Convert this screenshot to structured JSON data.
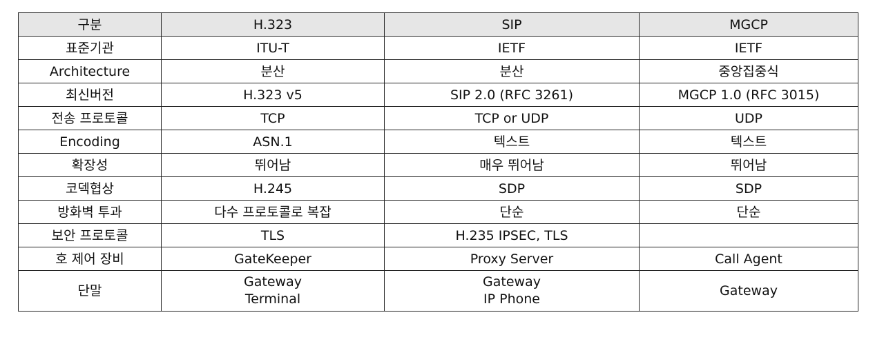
{
  "headers": [
    "구분",
    "H.323",
    "SIP",
    "MGCP"
  ],
  "rows": [
    {
      "label": "표준기관",
      "h323": [
        "ITU-T"
      ],
      "sip": [
        "IETF"
      ],
      "mgcp": [
        "IETF"
      ]
    },
    {
      "label": "Architecture",
      "h323": [
        "분산"
      ],
      "sip": [
        "분산"
      ],
      "mgcp": [
        "중앙집중식"
      ]
    },
    {
      "label": "최신버전",
      "h323": [
        "H.323 v5"
      ],
      "sip": [
        "SIP 2.0 (RFC 3261)"
      ],
      "mgcp": [
        "MGCP 1.0 (RFC 3015)"
      ]
    },
    {
      "label": "전송 프로토콜",
      "h323": [
        "TCP"
      ],
      "sip": [
        "TCP or UDP"
      ],
      "mgcp": [
        "UDP"
      ]
    },
    {
      "label": "Encoding",
      "h323": [
        "ASN.1"
      ],
      "sip": [
        "텍스트"
      ],
      "mgcp": [
        "텍스트"
      ]
    },
    {
      "label": "확장성",
      "h323": [
        "뛰어남"
      ],
      "sip": [
        "매우 뛰어남"
      ],
      "mgcp": [
        "뛰어남"
      ]
    },
    {
      "label": "코덱협상",
      "h323": [
        "H.245"
      ],
      "sip": [
        "SDP"
      ],
      "mgcp": [
        "SDP"
      ]
    },
    {
      "label": "방화벽 투과",
      "h323": [
        "다수 프로토콜로 복잡"
      ],
      "sip": [
        "단순"
      ],
      "mgcp": [
        "단순"
      ]
    },
    {
      "label": "보안 프로토콜",
      "h323": [
        "TLS"
      ],
      "sip": [
        "H.235 IPSEC, TLS"
      ],
      "mgcp": [
        ""
      ]
    },
    {
      "label": "호 제어 장비",
      "h323": [
        "GateKeeper"
      ],
      "sip": [
        "Proxy Server"
      ],
      "mgcp": [
        "Call Agent"
      ]
    },
    {
      "label": "단말",
      "h323": [
        "Gateway",
        "Terminal"
      ],
      "sip": [
        "Gateway",
        "IP Phone"
      ],
      "mgcp": [
        "Gateway"
      ]
    }
  ]
}
